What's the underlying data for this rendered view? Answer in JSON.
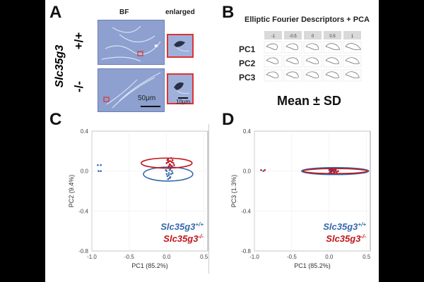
{
  "panels": {
    "a": "A",
    "b": "B",
    "c": "C",
    "d": "D"
  },
  "panel_a": {
    "col_bf": "BF",
    "col_enlarged": "enlarged",
    "gene": "Slc35g3",
    "row_wt": "+/+",
    "row_ko": "-/-",
    "scale_big": "50μm",
    "scale_small": "10μm"
  },
  "panel_b": {
    "title": "Elliptic Fourier Descriptors + PCA",
    "columns": [
      "-1",
      "-0.5",
      "0",
      "0.5",
      "1"
    ],
    "rows": [
      "PC1",
      "PC2",
      "PC3"
    ],
    "mean_sd": "Mean ± SD"
  },
  "chart_data": [
    {
      "type": "scatter",
      "panel": "C",
      "xlabel": "PC1 (85.2%)",
      "ylabel": "PC2 (9.4%)",
      "xlim": [
        -1.0,
        0.55
      ],
      "ylim": [
        -0.8,
        0.4
      ],
      "xticks": [
        "-1.0",
        "-0.5",
        "0.0",
        "0.5"
      ],
      "yticks": [
        "0.4",
        "0.0",
        "-0.4",
        "-0.8"
      ],
      "legend": {
        "blue": "Slc35g3",
        "blue_sup": "+/+",
        "red": "Slc35g3",
        "red_sup": "-/-"
      },
      "series": [
        {
          "color": "#3568ae",
          "points": [
            [
              -0.92,
              0.06
            ],
            [
              -0.88,
              0.06
            ],
            [
              -0.88,
              0.0
            ],
            [
              -0.91,
              0.0
            ],
            [
              0.0,
              0.0
            ],
            [
              0.03,
              -0.02
            ],
            [
              0.05,
              0.02
            ],
            [
              0.01,
              -0.05
            ],
            [
              0.06,
              -0.03
            ],
            [
              0.02,
              0.03
            ],
            [
              0.04,
              -0.07
            ],
            [
              -0.01,
              0.01
            ],
            [
              0.07,
              0.0
            ],
            [
              0.03,
              -0.04
            ],
            [
              0.05,
              -0.06
            ],
            [
              0.0,
              -0.03
            ],
            [
              0.08,
              -0.02
            ],
            [
              0.02,
              -0.08
            ],
            [
              0.06,
              0.04
            ],
            [
              0.04,
              0.01
            ]
          ],
          "ellipse": {
            "cx": 0.02,
            "cy": -0.03,
            "rx": 0.33,
            "ry": 0.07
          }
        },
        {
          "color": "#c0151a",
          "points": [
            [
              0.0,
              0.08
            ],
            [
              0.03,
              0.1
            ],
            [
              0.05,
              0.06
            ],
            [
              0.02,
              0.12
            ],
            [
              0.07,
              0.09
            ],
            [
              0.04,
              0.07
            ],
            [
              0.01,
              0.11
            ],
            [
              0.06,
              0.13
            ],
            [
              0.09,
              0.08
            ],
            [
              0.03,
              0.05
            ],
            [
              0.08,
              0.11
            ],
            [
              0.05,
              0.1
            ],
            [
              0.1,
              0.06
            ],
            [
              0.02,
              0.09
            ],
            [
              0.07,
              0.05
            ]
          ],
          "ellipse": {
            "cx": 0.0,
            "cy": 0.08,
            "rx": 0.34,
            "ry": 0.05
          }
        }
      ]
    },
    {
      "type": "scatter",
      "panel": "D",
      "xlabel": "PC1 (85.2%)",
      "ylabel": "PC3 (1.3%)",
      "xlim": [
        -1.0,
        0.55
      ],
      "ylim": [
        -0.8,
        0.4
      ],
      "xticks": [
        "-1.0",
        "-0.5",
        "0.0",
        "0.5"
      ],
      "yticks": [
        "0.4",
        "0.0",
        "-0.4",
        "-0.8"
      ],
      "legend": {
        "blue": "Slc35g3",
        "blue_sup": "+/+",
        "red": "Slc35g3",
        "red_sup": "-/-"
      },
      "series": [
        {
          "color": "#3568ae",
          "points": [
            [
              -0.88,
              0.0
            ],
            [
              0.0,
              0.01
            ],
            [
              0.02,
              -0.01
            ],
            [
              0.04,
              0.0
            ],
            [
              0.06,
              0.01
            ],
            [
              0.01,
              0.0
            ],
            [
              0.03,
              -0.02
            ],
            [
              0.05,
              0.02
            ],
            [
              0.07,
              -0.01
            ],
            [
              0.02,
              0.02
            ],
            [
              0.08,
              0.0
            ],
            [
              0.0,
              -0.02
            ],
            [
              0.04,
              0.01
            ],
            [
              0.06,
              -0.02
            ]
          ],
          "ellipse": {
            "cx": 0.08,
            "cy": 0.0,
            "rx": 0.45,
            "ry": 0.035
          }
        },
        {
          "color": "#c0151a",
          "points": [
            [
              -0.91,
              0.01
            ],
            [
              -0.86,
              0.01
            ],
            [
              0.01,
              0.02
            ],
            [
              0.03,
              0.0
            ],
            [
              0.05,
              0.01
            ],
            [
              0.07,
              -0.01
            ],
            [
              0.09,
              0.01
            ],
            [
              0.02,
              -0.01
            ],
            [
              0.04,
              0.02
            ],
            [
              0.06,
              0.0
            ],
            [
              0.1,
              -0.01
            ],
            [
              0.12,
              0.0
            ],
            [
              0.03,
              0.01
            ],
            [
              0.08,
              0.02
            ]
          ],
          "ellipse": {
            "cx": 0.08,
            "cy": 0.0,
            "rx": 0.43,
            "ry": 0.025
          }
        }
      ]
    }
  ]
}
